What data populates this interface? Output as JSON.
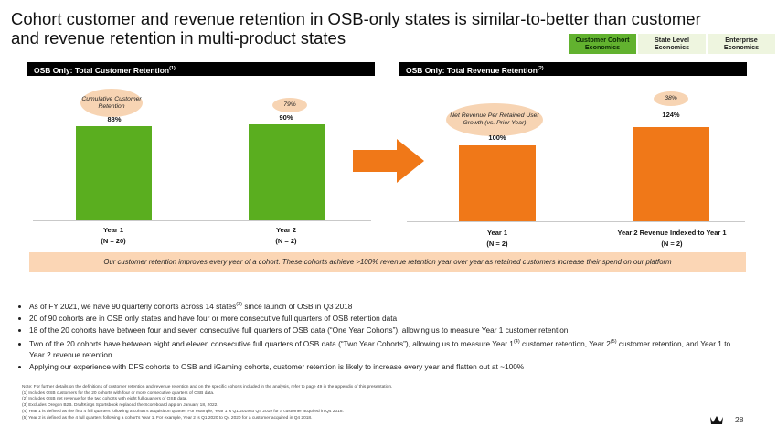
{
  "title": "Cohort customer and revenue retention in OSB-only states is similar-to-better than customer and revenue retention in multi-product states",
  "tabs": [
    {
      "label": "Customer Cohort Economics",
      "active": true
    },
    {
      "label": "State Level Economics",
      "active": false
    },
    {
      "label": "Enterprise Economics",
      "active": false
    }
  ],
  "left_panel": {
    "header": "OSB Only: Total Customer Retention",
    "header_sup": "(1)",
    "bubble1": "Cumulative Customer Retention",
    "bubble2": "79%"
  },
  "right_panel": {
    "header": "OSB Only: Total Revenue Retention",
    "header_sup": "(2)",
    "bubble1": "Net Revenue Per Retained User Growth (vs. Prior Year)",
    "bubble2": "38%"
  },
  "chart_data": [
    {
      "type": "bar",
      "title": "OSB Only: Total Customer Retention",
      "categories": [
        "Year 1",
        "Year 2"
      ],
      "category_notes": [
        "(N = 20)",
        "(N = 2)"
      ],
      "values": [
        88,
        90
      ],
      "value_labels": [
        "88%",
        "90%"
      ],
      "color": "#5aae1f",
      "ylim": [
        0,
        100
      ]
    },
    {
      "type": "bar",
      "title": "OSB Only: Total Revenue Retention",
      "categories": [
        "Year 1",
        "Year 2 Revenue Indexed to Year 1"
      ],
      "category_notes": [
        "(N = 2)",
        "(N = 2)"
      ],
      "values": [
        100,
        124
      ],
      "value_labels": [
        "100%",
        "124%"
      ],
      "color": "#f07818",
      "ylim": [
        0,
        140
      ]
    }
  ],
  "callout": "Our customer retention improves every year of a cohort. These cohorts achieve >100% revenue retention year over year as retained customers increase their spend on our platform",
  "bullets": [
    {
      "text": "As of FY 2021, we have 90 quarterly cohorts across 14 states",
      "sup": "(3)",
      "after": " since launch of OSB in Q3 2018"
    },
    {
      "text": "20 of 90 cohorts are in OSB only states and have four or more consecutive full quarters of OSB retention data",
      "sup": "",
      "after": ""
    },
    {
      "text": "18 of the 20 cohorts have between four and seven consecutive full quarters of OSB data (“One Year Cohorts”), allowing us to measure Year 1 customer retention",
      "sup": "",
      "after": ""
    },
    {
      "text": "Two of the 20 cohorts have between eight and eleven consecutive full quarters of OSB data (“Two Year Cohorts”), allowing us to measure Year 1",
      "sup": "(4)",
      "after": " customer retention, Year 2",
      "sup2": "(5)",
      "after2": " customer retention, and Year 1 to Year 2 revenue retention"
    },
    {
      "text": "Applying our experience with DFS cohorts to OSB and iGaming cohorts, customer retention is likely to increase every year and flatten out at ~100%",
      "sup": "",
      "after": ""
    }
  ],
  "notes": [
    "Note: For further details on the definitions of customer retention and revenue retention and on the specific cohorts included in the analysis, refer to page 49 in the appendix of this presentation.",
    "(1)    Includes OSB customers for the 20 cohorts with four or more consecutive quarters of OSB data.",
    "(2)    Includes OSB net revenue for the two cohorts with eight full quarters of OSB data.",
    "(3)    Excludes Oregon B2B. DraftKings Sportsbook replaced the Scoreboard app on January 18, 2022.",
    "(4)    Year 1 is defined as the first 4 full quarters following a cohort's acquisition quarter. For example, Year 1 is Q1 2019 to Q4 2019 for a customer acquired in Q4 2018.",
    "(5)    Year 2 is defined as the 4 full quarters following a cohort's Year 1. For example, Year 2 is Q1 2020 to Q4 2020 for a customer acquired in Q4 2018."
  ],
  "page_number": "28"
}
